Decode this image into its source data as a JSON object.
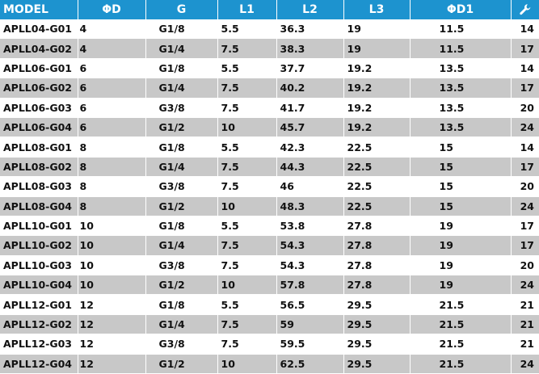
{
  "table": {
    "headers": {
      "model": "MODEL",
      "d": "ΦD",
      "g": "G",
      "l1": "L1",
      "l2": "L2",
      "l3": "L3",
      "d1": "ΦD1",
      "wrench_icon": "wrench-icon"
    },
    "rows": [
      [
        "APLL04-G01",
        "4",
        "G1/8",
        "5.5",
        "36.3",
        "19",
        "11.5",
        "14"
      ],
      [
        "APLL04-G02",
        "4",
        "G1/4",
        "7.5",
        "38.3",
        "19",
        "11.5",
        "17"
      ],
      [
        "APLL06-G01",
        "6",
        "G1/8",
        "5.5",
        "37.7",
        "19.2",
        "13.5",
        "14"
      ],
      [
        "APLL06-G02",
        "6",
        "G1/4",
        "7.5",
        "40.2",
        "19.2",
        "13.5",
        "17"
      ],
      [
        "APLL06-G03",
        "6",
        "G3/8",
        "7.5",
        "41.7",
        "19.2",
        "13.5",
        "20"
      ],
      [
        "APLL06-G04",
        "6",
        "G1/2",
        "10",
        "45.7",
        "19.2",
        "13.5",
        "24"
      ],
      [
        "APLL08-G01",
        "8",
        "G1/8",
        "5.5",
        "42.3",
        "22.5",
        "15",
        "14"
      ],
      [
        "APLL08-G02",
        "8",
        "G1/4",
        "7.5",
        "44.3",
        "22.5",
        "15",
        "17"
      ],
      [
        "APLL08-G03",
        "8",
        "G3/8",
        "7.5",
        "46",
        "22.5",
        "15",
        "20"
      ],
      [
        "APLL08-G04",
        "8",
        "G1/2",
        "10",
        "48.3",
        "22.5",
        "15",
        "24"
      ],
      [
        "APLL10-G01",
        "10",
        "G1/8",
        "5.5",
        "53.8",
        "27.8",
        "19",
        "17"
      ],
      [
        "APLL10-G02",
        "10",
        "G1/4",
        "7.5",
        "54.3",
        "27.8",
        "19",
        "17"
      ],
      [
        "APLL10-G03",
        "10",
        "G3/8",
        "7.5",
        "54.3",
        "27.8",
        "19",
        "20"
      ],
      [
        "APLL10-G04",
        "10",
        "G1/2",
        "10",
        "57.8",
        "27.8",
        "19",
        "24"
      ],
      [
        "APLL12-G01",
        "12",
        "G1/8",
        "5.5",
        "56.5",
        "29.5",
        "21.5",
        "21"
      ],
      [
        "APLL12-G02",
        "12",
        "G1/4",
        "7.5",
        "59",
        "29.5",
        "21.5",
        "21"
      ],
      [
        "APLL12-G03",
        "12",
        "G3/8",
        "7.5",
        "59.5",
        "29.5",
        "21.5",
        "21"
      ],
      [
        "APLL12-G04",
        "12",
        "G1/2",
        "10",
        "62.5",
        "29.5",
        "21.5",
        "24"
      ]
    ]
  }
}
